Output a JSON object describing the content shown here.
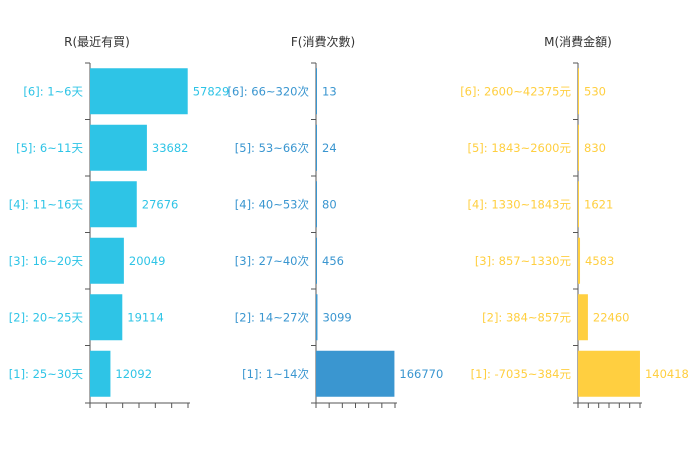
{
  "chart_data": [
    {
      "type": "bar",
      "orientation": "horizontal",
      "title": "R(最近有買)",
      "color": "#2ec4e6",
      "categories": [
        "[6]: 1~6天",
        "[5]: 6~11天",
        "[4]: 11~16天",
        "[3]: 16~20天",
        "[2]: 20~25天",
        "[1]: 25~30天"
      ],
      "values": [
        57829,
        33682,
        27676,
        20049,
        19114,
        12092
      ],
      "value_labels": [
        "57829",
        "33682",
        "27676",
        "20049",
        "19114",
        "12092"
      ],
      "xlim": [
        0,
        58000
      ]
    },
    {
      "type": "bar",
      "orientation": "horizontal",
      "title": "F(消費次數)",
      "color": "#3a96d0",
      "categories": [
        "[6]: 66~320次",
        "[5]: 53~66次",
        "[4]: 40~53次",
        "[3]: 27~40次",
        "[2]: 14~27次",
        "[1]: 1~14次"
      ],
      "values": [
        13,
        24,
        80,
        456,
        3099,
        166770
      ],
      "value_labels": [
        "13",
        "24",
        "80",
        "456",
        "3099",
        "166770"
      ],
      "xlim": [
        0,
        168000
      ]
    },
    {
      "type": "bar",
      "orientation": "horizontal",
      "title": "M(消費金額)",
      "color": "#ffcf40",
      "categories": [
        "[6]: 2600~42375元",
        "[5]: 1843~2600元",
        "[4]: 1330~1843元",
        "[3]: 857~1330元",
        "[2]: 384~857元",
        "[1]: -7035~384元"
      ],
      "values": [
        530,
        830,
        1621,
        4583,
        22460,
        140418
      ],
      "value_labels": [
        "530",
        "830",
        "1621",
        "4583",
        "22460",
        "140418"
      ],
      "xlim": [
        0,
        140500
      ]
    }
  ]
}
